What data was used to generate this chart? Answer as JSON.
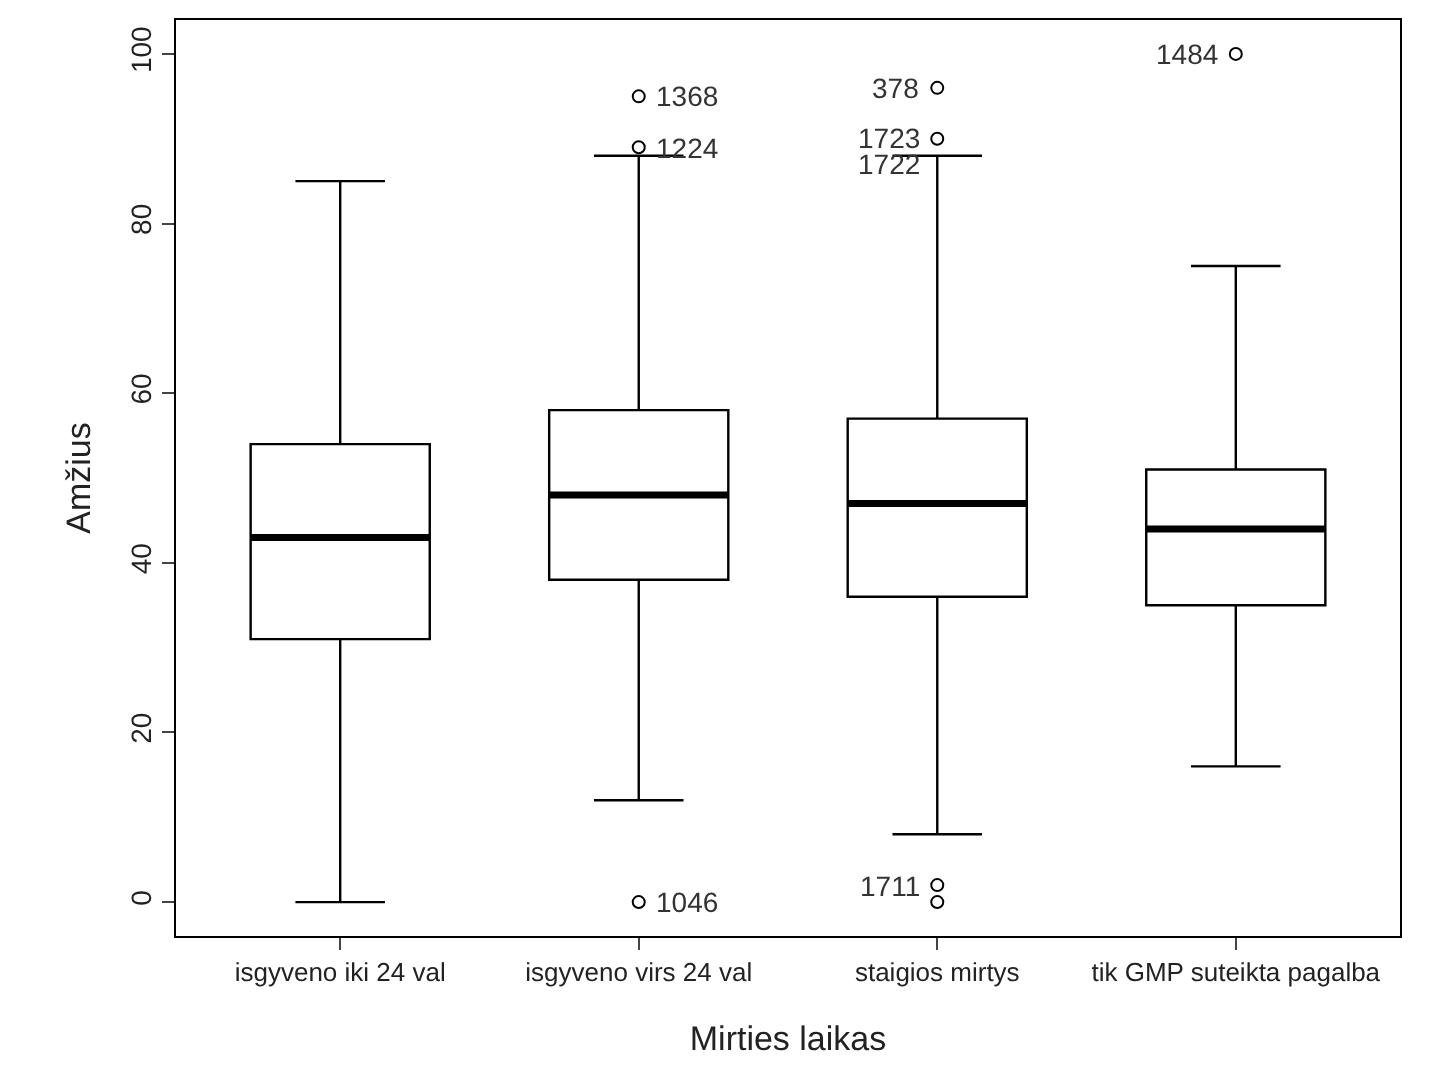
{
  "chart_data": {
    "type": "box",
    "xlabel": "Mirties laikas",
    "ylabel": "Amžius",
    "categories": [
      "isgyveno iki 24 val",
      "isgyveno virs 24 val",
      "staigios mirtys",
      "tik GMP suteikta pagalba"
    ],
    "boxes": [
      {
        "low": 0,
        "q1": 31,
        "median": 43,
        "q3": 54,
        "high": 85
      },
      {
        "low": 12,
        "q1": 38,
        "median": 48,
        "q3": 58,
        "high": 88
      },
      {
        "low": 8,
        "q1": 36,
        "median": 47,
        "q3": 57,
        "high": 88
      },
      {
        "low": 16,
        "q1": 35,
        "median": 44,
        "q3": 51,
        "high": 75
      }
    ],
    "series": [
      {
        "type": "scatter",
        "color": "#000000",
        "x": [
          "isgyveno virs 24 val",
          "isgyveno virs 24 val",
          "isgyveno virs 24 val",
          "staigios mirtys",
          "staigios mirtys",
          "staigios mirtys",
          "staigios mirtys",
          "tik GMP suteikta pagalba"
        ],
        "values": [
          95,
          89,
          0,
          96,
          90,
          2,
          0,
          100
        ]
      }
    ],
    "color": "#000000",
    "ylim": [
      -4,
      104
    ],
    "yticks": [
      0,
      20,
      40,
      60,
      80,
      100
    ],
    "marker": "circle",
    "annotations": [
      {
        "text": "1368",
        "x": "isgyveno virs 24 val",
        "y": 95
      },
      {
        "text": "1224",
        "x": "isgyveno virs 24 val",
        "y": 89
      },
      {
        "text": "1046",
        "x": "isgyveno virs 24 val",
        "y": 0
      },
      {
        "text": "378",
        "x": "staigios mirtys",
        "y": 96
      },
      {
        "text": "1723",
        "x": "staigios mirtys",
        "y": 90
      },
      {
        "text": "1722",
        "x": "staigios mirtys",
        "y": 90
      },
      {
        "text": "1711",
        "x": "staigios mirtys",
        "y": 2
      },
      {
        "text": "1484",
        "x": "tik GMP suteikta pagalba",
        "y": 100
      }
    ]
  }
}
